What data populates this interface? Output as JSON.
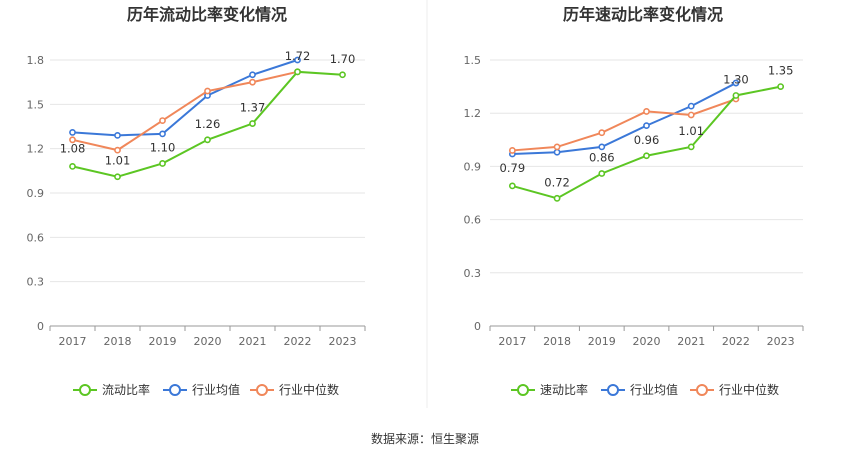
{
  "source_label": "数据来源：恒生聚源",
  "chart_data": [
    {
      "type": "line",
      "title": "历年流动比率变化情况",
      "categories": [
        "2017",
        "2018",
        "2019",
        "2020",
        "2021",
        "2022",
        "2023"
      ],
      "ylim": [
        0,
        1.8
      ],
      "yticks": [
        "0",
        "0.3",
        "0.6",
        "0.9",
        "1.2",
        "1.5",
        "1.8"
      ],
      "grid": true,
      "legend_position": "bottom",
      "series": [
        {
          "name": "流动比率",
          "color": "#5cc623",
          "values": [
            1.08,
            1.01,
            1.1,
            1.26,
            1.37,
            1.72,
            1.7
          ],
          "labels": [
            "1.08",
            "1.01",
            "1.10",
            "1.26",
            "1.37",
            "1.72",
            "1.70"
          ]
        },
        {
          "name": "行业均值",
          "color": "#3b78d8",
          "values": [
            1.31,
            1.29,
            1.3,
            1.56,
            1.7,
            1.8,
            null
          ]
        },
        {
          "name": "行业中位数",
          "color": "#f0875a",
          "values": [
            1.26,
            1.19,
            1.39,
            1.59,
            1.65,
            1.72,
            null
          ]
        }
      ]
    },
    {
      "type": "line",
      "title": "历年速动比率变化情况",
      "categories": [
        "2017",
        "2018",
        "2019",
        "2020",
        "2021",
        "2022",
        "2023"
      ],
      "ylim": [
        0,
        1.5
      ],
      "yticks": [
        "0",
        "0.3",
        "0.6",
        "0.9",
        "1.2",
        "1.5"
      ],
      "grid": true,
      "legend_position": "bottom",
      "series": [
        {
          "name": "速动比率",
          "color": "#5cc623",
          "values": [
            0.79,
            0.72,
            0.86,
            0.96,
            1.01,
            1.3,
            1.35
          ],
          "labels": [
            "0.79",
            "0.72",
            "0.86",
            "0.96",
            "1.01",
            "1.30",
            "1.35"
          ]
        },
        {
          "name": "行业均值",
          "color": "#3b78d8",
          "values": [
            0.97,
            0.98,
            1.01,
            1.13,
            1.24,
            1.37,
            null
          ]
        },
        {
          "name": "行业中位数",
          "color": "#f0875a",
          "values": [
            0.99,
            1.01,
            1.09,
            1.21,
            1.19,
            1.28,
            null
          ]
        }
      ]
    }
  ]
}
